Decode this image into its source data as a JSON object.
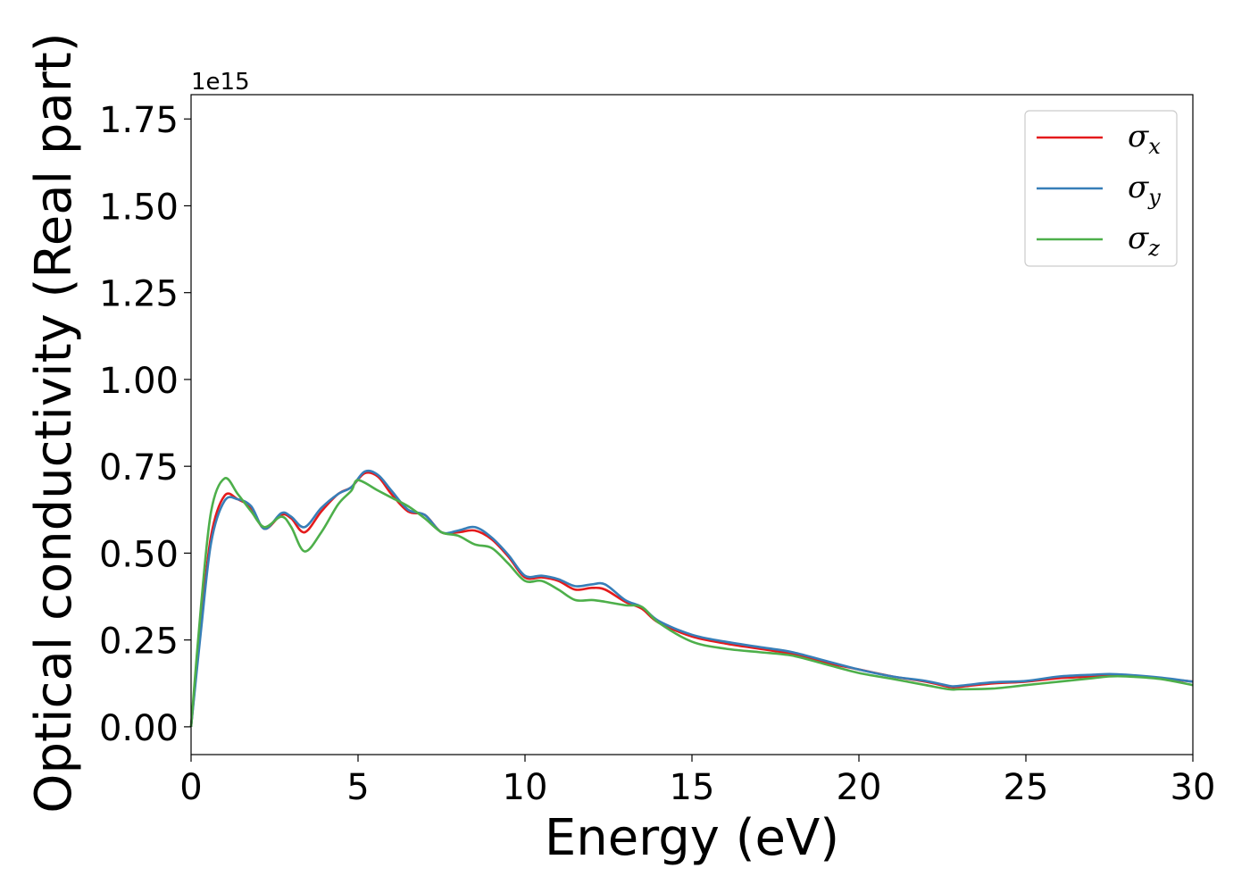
{
  "chart_data": {
    "type": "line",
    "xlabel": "Energy (eV)",
    "ylabel": "Optical conductivity (Real part)",
    "y_offset_label": "1e15",
    "xlim": [
      0,
      30
    ],
    "ylim": [
      -0.08,
      1.82
    ],
    "x_ticks": [
      0,
      5,
      10,
      15,
      20,
      25,
      30
    ],
    "x_tick_labels": [
      "0",
      "5",
      "10",
      "15",
      "20",
      "25",
      "30"
    ],
    "y_ticks": [
      0.0,
      0.25,
      0.5,
      0.75,
      1.0,
      1.25,
      1.5,
      1.75
    ],
    "y_tick_labels": [
      "0.00",
      "0.25",
      "0.50",
      "0.75",
      "1.00",
      "1.25",
      "1.50",
      "1.75"
    ],
    "grid": false,
    "legend_position": "top-right",
    "series": [
      {
        "name": "σ_x",
        "label_main": "σ",
        "label_sub": "x",
        "color": "#e41a1c",
        "points": [
          [
            0,
            0
          ],
          [
            0.3,
            0.3
          ],
          [
            0.6,
            0.55
          ],
          [
            1,
            0.665
          ],
          [
            1.4,
            0.655
          ],
          [
            1.8,
            0.63
          ],
          [
            2.2,
            0.57
          ],
          [
            2.7,
            0.61
          ],
          [
            3,
            0.6
          ],
          [
            3.4,
            0.56
          ],
          [
            3.9,
            0.62
          ],
          [
            4.4,
            0.67
          ],
          [
            4.8,
            0.69
          ],
          [
            5.2,
            0.73
          ],
          [
            5.6,
            0.72
          ],
          [
            6,
            0.67
          ],
          [
            6.5,
            0.62
          ],
          [
            7,
            0.61
          ],
          [
            7.5,
            0.56
          ],
          [
            8,
            0.56
          ],
          [
            8.5,
            0.565
          ],
          [
            9,
            0.54
          ],
          [
            9.5,
            0.49
          ],
          [
            10,
            0.43
          ],
          [
            10.5,
            0.43
          ],
          [
            11,
            0.42
          ],
          [
            11.5,
            0.395
          ],
          [
            12,
            0.4
          ],
          [
            12.4,
            0.395
          ],
          [
            13,
            0.36
          ],
          [
            13.5,
            0.34
          ],
          [
            14,
            0.3
          ],
          [
            15,
            0.26
          ],
          [
            16,
            0.24
          ],
          [
            17,
            0.225
          ],
          [
            18,
            0.21
          ],
          [
            19,
            0.185
          ],
          [
            20,
            0.165
          ],
          [
            21,
            0.145
          ],
          [
            22,
            0.13
          ],
          [
            22.7,
            0.115
          ],
          [
            23,
            0.115
          ],
          [
            24,
            0.125
          ],
          [
            25,
            0.13
          ],
          [
            26,
            0.14
          ],
          [
            27,
            0.145
          ],
          [
            27.5,
            0.15
          ],
          [
            28,
            0.148
          ],
          [
            29,
            0.14
          ],
          [
            30,
            0.13
          ]
        ]
      },
      {
        "name": "σ_y",
        "label_main": "σ",
        "label_sub": "y",
        "color": "#377eb8",
        "points": [
          [
            0,
            0
          ],
          [
            0.3,
            0.28
          ],
          [
            0.6,
            0.53
          ],
          [
            1,
            0.65
          ],
          [
            1.4,
            0.655
          ],
          [
            1.8,
            0.635
          ],
          [
            2.2,
            0.57
          ],
          [
            2.7,
            0.615
          ],
          [
            3,
            0.605
          ],
          [
            3.4,
            0.575
          ],
          [
            3.9,
            0.63
          ],
          [
            4.4,
            0.67
          ],
          [
            4.8,
            0.69
          ],
          [
            5.2,
            0.735
          ],
          [
            5.6,
            0.725
          ],
          [
            6,
            0.68
          ],
          [
            6.5,
            0.625
          ],
          [
            7,
            0.61
          ],
          [
            7.5,
            0.56
          ],
          [
            8,
            0.565
          ],
          [
            8.5,
            0.575
          ],
          [
            9,
            0.545
          ],
          [
            9.5,
            0.495
          ],
          [
            10,
            0.435
          ],
          [
            10.5,
            0.435
          ],
          [
            11,
            0.425
          ],
          [
            11.5,
            0.405
          ],
          [
            12,
            0.41
          ],
          [
            12.4,
            0.41
          ],
          [
            13,
            0.365
          ],
          [
            13.5,
            0.345
          ],
          [
            14,
            0.305
          ],
          [
            15,
            0.265
          ],
          [
            16,
            0.245
          ],
          [
            17,
            0.23
          ],
          [
            18,
            0.215
          ],
          [
            19,
            0.19
          ],
          [
            20,
            0.165
          ],
          [
            21,
            0.145
          ],
          [
            22,
            0.132
          ],
          [
            22.7,
            0.118
          ],
          [
            23,
            0.118
          ],
          [
            24,
            0.128
          ],
          [
            25,
            0.132
          ],
          [
            26,
            0.145
          ],
          [
            27,
            0.15
          ],
          [
            27.5,
            0.152
          ],
          [
            28,
            0.15
          ],
          [
            29,
            0.142
          ],
          [
            30,
            0.13
          ]
        ]
      },
      {
        "name": "σ_z",
        "label_main": "σ",
        "label_sub": "z",
        "color": "#4daf4a",
        "points": [
          [
            0,
            0
          ],
          [
            0.3,
            0.35
          ],
          [
            0.6,
            0.62
          ],
          [
            1,
            0.715
          ],
          [
            1.4,
            0.67
          ],
          [
            1.8,
            0.62
          ],
          [
            2.2,
            0.575
          ],
          [
            2.7,
            0.605
          ],
          [
            3,
            0.575
          ],
          [
            3.4,
            0.505
          ],
          [
            3.9,
            0.56
          ],
          [
            4.4,
            0.64
          ],
          [
            4.8,
            0.68
          ],
          [
            5,
            0.71
          ],
          [
            5.6,
            0.68
          ],
          [
            6,
            0.66
          ],
          [
            6.5,
            0.635
          ],
          [
            7,
            0.6
          ],
          [
            7.5,
            0.56
          ],
          [
            8,
            0.55
          ],
          [
            8.5,
            0.525
          ],
          [
            9,
            0.515
          ],
          [
            9.5,
            0.47
          ],
          [
            10,
            0.42
          ],
          [
            10.5,
            0.42
          ],
          [
            11,
            0.395
          ],
          [
            11.5,
            0.365
          ],
          [
            12,
            0.365
          ],
          [
            12.4,
            0.36
          ],
          [
            13,
            0.35
          ],
          [
            13.5,
            0.345
          ],
          [
            14,
            0.3
          ],
          [
            15,
            0.245
          ],
          [
            16,
            0.225
          ],
          [
            17,
            0.215
          ],
          [
            18,
            0.205
          ],
          [
            19,
            0.18
          ],
          [
            20,
            0.155
          ],
          [
            21,
            0.138
          ],
          [
            22,
            0.12
          ],
          [
            22.7,
            0.108
          ],
          [
            23,
            0.108
          ],
          [
            24,
            0.11
          ],
          [
            25,
            0.12
          ],
          [
            26,
            0.13
          ],
          [
            27,
            0.14
          ],
          [
            27.5,
            0.145
          ],
          [
            28,
            0.145
          ],
          [
            29,
            0.138
          ],
          [
            30,
            0.12
          ]
        ]
      }
    ]
  }
}
